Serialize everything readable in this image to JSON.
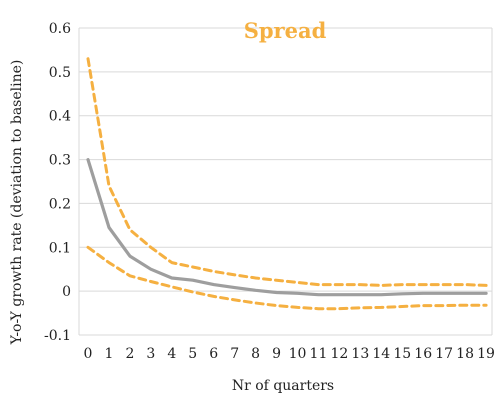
{
  "chart_data": {
    "type": "line",
    "title": "Spread",
    "xlabel": "Nr of quarters",
    "ylabel": "Y-o-Y growth rate (deviation to baseline)",
    "x": [
      0,
      1,
      2,
      3,
      4,
      5,
      6,
      7,
      8,
      9,
      10,
      11,
      12,
      13,
      14,
      15,
      16,
      17,
      18,
      19
    ],
    "x_ticks": [
      "0",
      "1",
      "2",
      "3",
      "4",
      "5",
      "6",
      "7",
      "8",
      "9",
      "10",
      "11",
      "12",
      "13",
      "14",
      "15",
      "16",
      "17",
      "18",
      "19"
    ],
    "y_ticks": [
      "0.6",
      "0.5",
      "0.4",
      "0.3",
      "0.2",
      "0.1",
      "0",
      "-0.1"
    ],
    "ylim": [
      -0.1,
      0.6
    ],
    "grid": true,
    "series": [
      {
        "style": "solid",
        "color": "#9e9e9e",
        "values": [
          0.3,
          0.145,
          0.08,
          0.05,
          0.03,
          0.025,
          0.015,
          0.008,
          0.002,
          -0.003,
          -0.005,
          -0.008,
          -0.008,
          -0.008,
          -0.008,
          -0.006,
          -0.005,
          -0.005,
          -0.005,
          -0.005
        ]
      },
      {
        "style": "dashed",
        "color": "#f5b041",
        "values": [
          0.53,
          0.24,
          0.14,
          0.1,
          0.065,
          0.055,
          0.045,
          0.037,
          0.03,
          0.025,
          0.02,
          0.015,
          0.015,
          0.015,
          0.013,
          0.015,
          0.015,
          0.015,
          0.015,
          0.013
        ]
      },
      {
        "style": "dashed",
        "color": "#f5b041",
        "values": [
          0.1,
          0.065,
          0.035,
          0.022,
          0.01,
          -0.002,
          -0.012,
          -0.02,
          -0.027,
          -0.033,
          -0.037,
          -0.04,
          -0.04,
          -0.038,
          -0.037,
          -0.035,
          -0.033,
          -0.033,
          -0.032,
          -0.032
        ]
      }
    ]
  },
  "colors": {
    "title": "#f5b041",
    "grid": "#d9d9d9",
    "axis": "#888888"
  }
}
